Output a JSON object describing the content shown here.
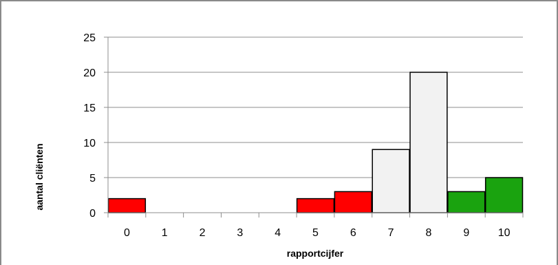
{
  "chart_data": {
    "type": "bar",
    "title": "",
    "xlabel": "rapportcijfer",
    "ylabel": "aantal cliënten",
    "categories": [
      "0",
      "1",
      "2",
      "3",
      "4",
      "5",
      "6",
      "7",
      "8",
      "9",
      "10"
    ],
    "values": [
      2,
      0,
      0,
      0,
      0,
      2,
      3,
      9,
      20,
      3,
      5
    ],
    "bar_colors": [
      "#ff0000",
      "#ff0000",
      "#ff0000",
      "#ff0000",
      "#ff0000",
      "#ff0000",
      "#ff0000",
      "#f2f2f2",
      "#f2f2f2",
      "#1aa30f",
      "#1aa30f"
    ],
    "ylim": [
      0,
      25
    ],
    "yticks": [
      "0",
      "5",
      "10",
      "15",
      "20",
      "25"
    ],
    "grid": true,
    "legend": "none"
  }
}
